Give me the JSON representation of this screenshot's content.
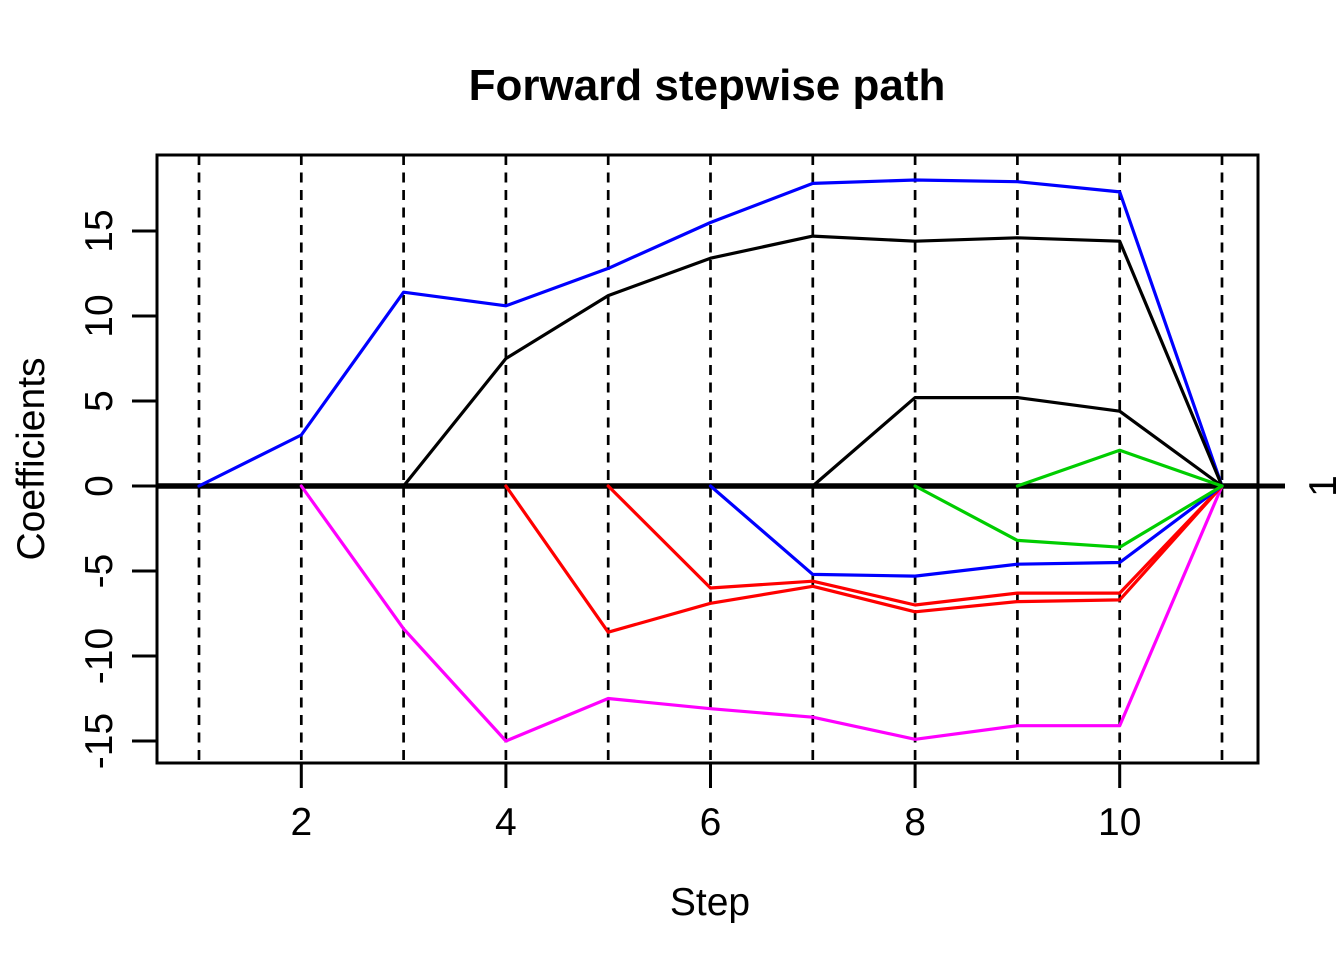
{
  "page": {
    "background": "#FFFFFF",
    "foreground": "#000000"
  },
  "chart_data": {
    "type": "line",
    "title": "Forward stepwise path",
    "xlabel": "Step",
    "ylabel": "Coefficients",
    "right_axis_label": "1",
    "right_axis_label_at_y": 0,
    "x_ticks": [
      2,
      4,
      6,
      8,
      10
    ],
    "y_ticks": [
      -15,
      -10,
      -5,
      0,
      5,
      10,
      15
    ],
    "step_guides": [
      1,
      2,
      3,
      4,
      5,
      6,
      7,
      8,
      9,
      10,
      11
    ],
    "xlim": [
      0.6,
      11.35
    ],
    "ylim": [
      -16.3,
      19.5
    ],
    "grid": "vertical dashed guide at every step",
    "legend_position": "none",
    "zero_line": {
      "y": 0,
      "color": "#000000",
      "thick": true
    },
    "series": [
      {
        "name": "coef-blue-upper",
        "color": "#0000FF",
        "points": [
          [
            1,
            0
          ],
          [
            2,
            3.0
          ],
          [
            3,
            11.4
          ],
          [
            4,
            10.6
          ],
          [
            5,
            12.8
          ],
          [
            6,
            15.5
          ],
          [
            7,
            17.8
          ],
          [
            8,
            18.0
          ],
          [
            9,
            17.9
          ],
          [
            10,
            17.3
          ],
          [
            11,
            0
          ]
        ]
      },
      {
        "name": "coef-black-upper",
        "color": "#000000",
        "points": [
          [
            3,
            0
          ],
          [
            4,
            7.5
          ],
          [
            5,
            11.2
          ],
          [
            6,
            13.4
          ],
          [
            7,
            14.7
          ],
          [
            8,
            14.4
          ],
          [
            9,
            14.6
          ],
          [
            10,
            14.4
          ],
          [
            11,
            0
          ]
        ]
      },
      {
        "name": "coef-magenta",
        "color": "#FF00FF",
        "points": [
          [
            2,
            0
          ],
          [
            3,
            -8.4
          ],
          [
            4,
            -15.0
          ],
          [
            5,
            -12.5
          ],
          [
            6,
            -13.1
          ],
          [
            7,
            -13.6
          ],
          [
            8,
            -14.9
          ],
          [
            9,
            -14.1
          ],
          [
            10,
            -14.1
          ],
          [
            11,
            0
          ]
        ]
      },
      {
        "name": "coef-red-1",
        "color": "#FF0000",
        "points": [
          [
            4,
            0
          ],
          [
            5,
            -8.6
          ],
          [
            6,
            -6.9
          ],
          [
            7,
            -5.9
          ],
          [
            8,
            -7.4
          ],
          [
            9,
            -6.8
          ],
          [
            10,
            -6.7
          ],
          [
            11,
            0
          ]
        ]
      },
      {
        "name": "coef-red-2",
        "color": "#FF0000",
        "points": [
          [
            5,
            0
          ],
          [
            6,
            -6.0
          ],
          [
            7,
            -5.6
          ],
          [
            8,
            -7.0
          ],
          [
            9,
            -6.3
          ],
          [
            10,
            -6.3
          ],
          [
            11,
            0
          ]
        ]
      },
      {
        "name": "coef-blue-lower",
        "color": "#0000FF",
        "points": [
          [
            6,
            0
          ],
          [
            7,
            -5.2
          ],
          [
            8,
            -5.3
          ],
          [
            9,
            -4.6
          ],
          [
            10,
            -4.5
          ],
          [
            11,
            0
          ]
        ]
      },
      {
        "name": "coef-black-lower",
        "color": "#000000",
        "points": [
          [
            7,
            0
          ],
          [
            8,
            5.2
          ],
          [
            9,
            5.2
          ],
          [
            10,
            4.4
          ],
          [
            11,
            0
          ]
        ]
      },
      {
        "name": "coef-green-lower",
        "color": "#00CD00",
        "points": [
          [
            8,
            0
          ],
          [
            9,
            -3.2
          ],
          [
            10,
            -3.6
          ],
          [
            11,
            0
          ]
        ]
      },
      {
        "name": "coef-green-upper",
        "color": "#00CD00",
        "points": [
          [
            9,
            0
          ],
          [
            10,
            2.1
          ],
          [
            11,
            0
          ]
        ]
      }
    ]
  }
}
